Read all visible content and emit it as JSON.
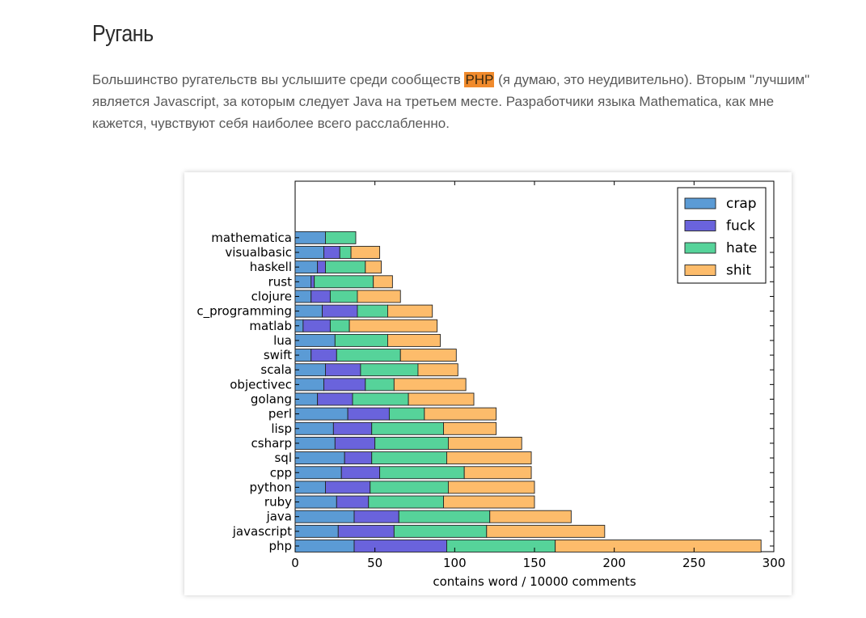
{
  "article": {
    "heading": "Ругань",
    "paragraph_lines": [
      [
        "Большинство ругательств вы услышите среди сообществ ",
        "PHP",
        " (я думаю, это неудивительно). Вторым \"лучшим\""
      ],
      [
        "является Javascript, за которым следует Java на третьем месте. Разработчики языка Mathematica, как мне",
        "",
        ""
      ],
      [
        "кажется, чувствуют себя наиболее всего расслабленно.",
        "",
        ""
      ]
    ]
  },
  "chart_data": {
    "type": "bar",
    "orientation": "horizontal",
    "stacked": true,
    "xlabel": "contains word / 10000 comments",
    "ylabel": "",
    "xlim": [
      0,
      300
    ],
    "xticks": [
      0,
      50,
      100,
      150,
      200,
      250,
      300
    ],
    "legend_position": "top-right",
    "grid": false,
    "categories": [
      "php",
      "javascript",
      "java",
      "ruby",
      "python",
      "cpp",
      "sql",
      "csharp",
      "lisp",
      "perl",
      "golang",
      "objectivec",
      "scala",
      "swift",
      "lua",
      "matlab",
      "c_programming",
      "clojure",
      "rust",
      "haskell",
      "visualbasic",
      "mathematica"
    ],
    "series": [
      {
        "name": "crap",
        "color": "#5b9bd5",
        "values": [
          37,
          27,
          37,
          26,
          19,
          29,
          31,
          25,
          24,
          33,
          14,
          18,
          19,
          10,
          25,
          5,
          17,
          10,
          10,
          14,
          18,
          19
        ]
      },
      {
        "name": "fuck",
        "color": "#6a63dc",
        "values": [
          58,
          35,
          28,
          20,
          28,
          24,
          17,
          25,
          24,
          26,
          22,
          26,
          22,
          16,
          0,
          17,
          22,
          12,
          2,
          5,
          10,
          0
        ]
      },
      {
        "name": "hate",
        "color": "#56d39a",
        "values": [
          68,
          58,
          57,
          47,
          49,
          53,
          47,
          46,
          45,
          22,
          35,
          18,
          36,
          40,
          33,
          12,
          19,
          17,
          37,
          25,
          7,
          19
        ]
      },
      {
        "name": "shit",
        "color": "#fdbc6b",
        "values": [
          129,
          74,
          51,
          57,
          54,
          42,
          53,
          46,
          33,
          45,
          41,
          45,
          25,
          35,
          33,
          55,
          28,
          27,
          12,
          10,
          18,
          0
        ]
      }
    ]
  }
}
